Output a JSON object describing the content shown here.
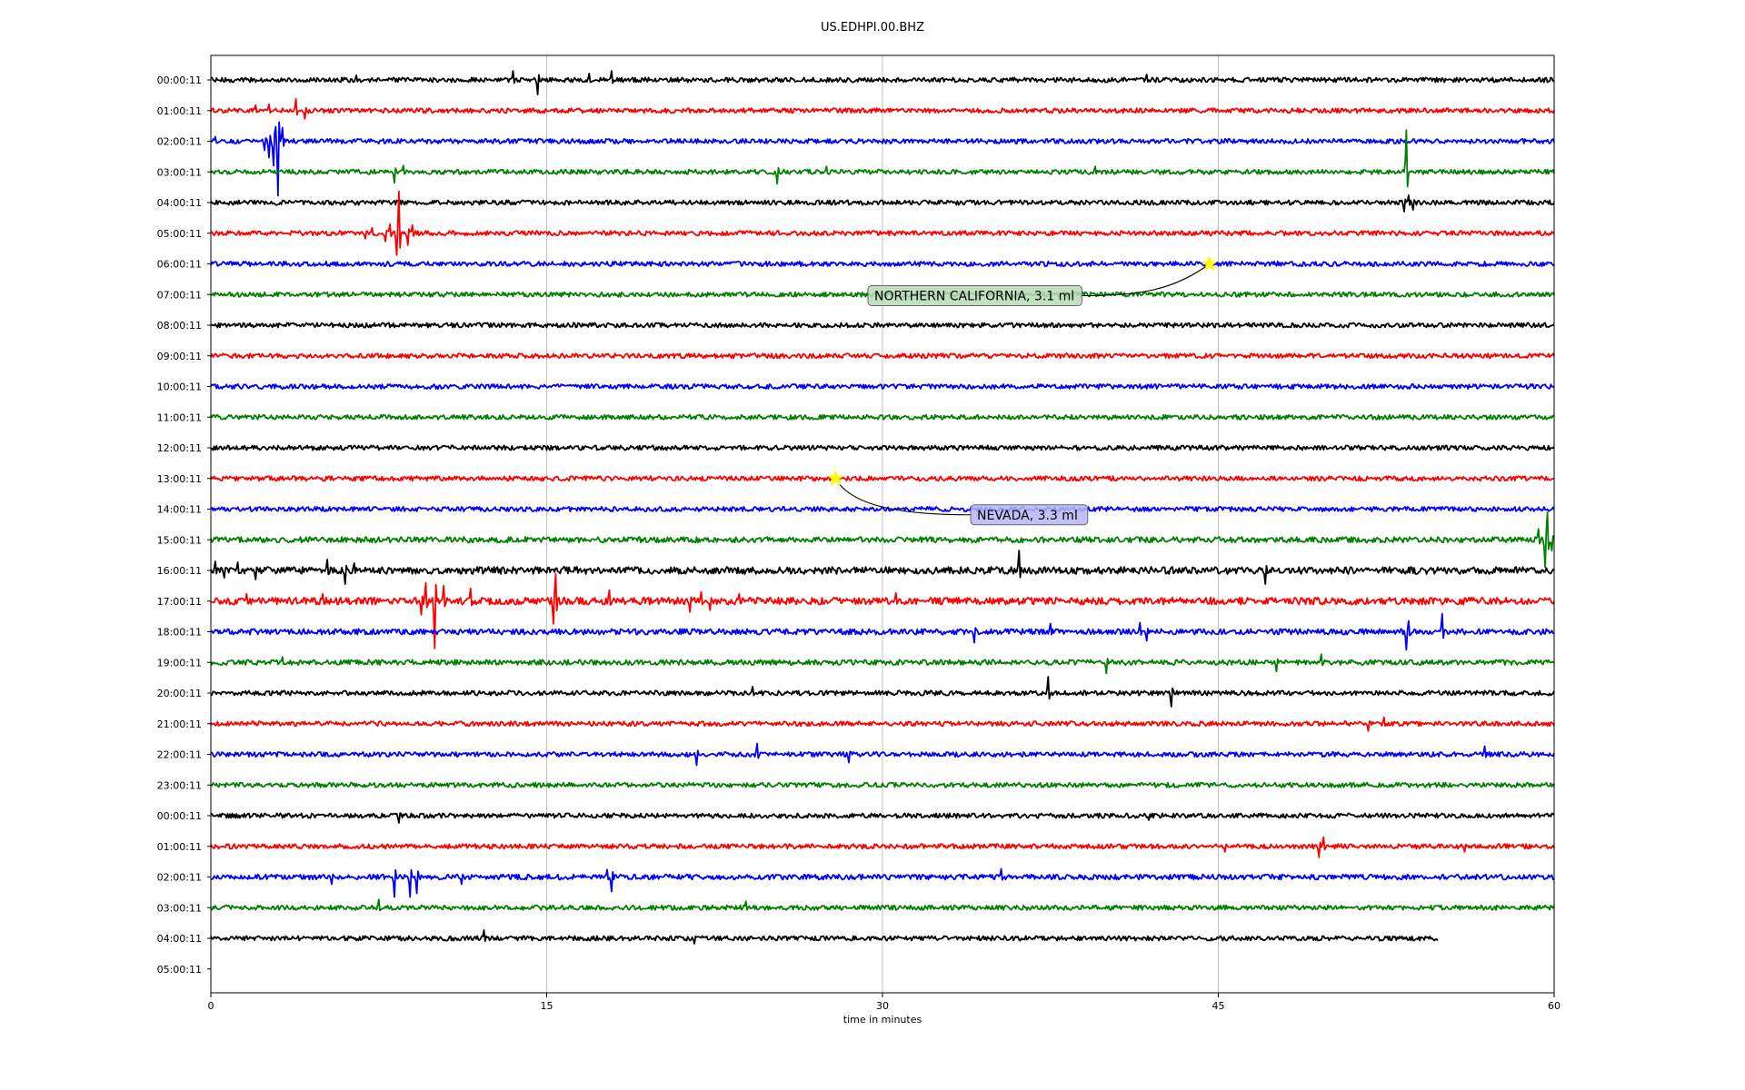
{
  "chart_data": {
    "type": "line",
    "title": "US.EDHPI.00.BHZ",
    "xlabel": "time in minutes",
    "ylabel": "",
    "xlim": [
      0,
      60
    ],
    "xticks": [
      "0",
      "15",
      "30",
      "45",
      "60"
    ],
    "xtick_values": [
      0,
      15,
      30,
      45,
      60
    ],
    "grid": "vertical lines at major x ticks",
    "colors": {
      "trace_cycle": [
        "#000000",
        "#ff0000",
        "#0000ff",
        "#008000"
      ],
      "event_star": "#ffff00"
    },
    "rows": [
      {
        "label": "00:00:11",
        "color": "#000000",
        "end_minute": 60,
        "noise": 1.0
      },
      {
        "label": "01:00:11",
        "color": "#ff0000",
        "end_minute": 60,
        "noise": 1.0
      },
      {
        "label": "02:00:11",
        "color": "#0000ff",
        "end_minute": 60,
        "noise": 1.0
      },
      {
        "label": "03:00:11",
        "color": "#008000",
        "end_minute": 60,
        "noise": 1.0
      },
      {
        "label": "04:00:11",
        "color": "#000000",
        "end_minute": 60,
        "noise": 1.0
      },
      {
        "label": "05:00:11",
        "color": "#ff0000",
        "end_minute": 60,
        "noise": 1.0
      },
      {
        "label": "06:00:11",
        "color": "#0000ff",
        "end_minute": 60,
        "noise": 1.0
      },
      {
        "label": "07:00:11",
        "color": "#008000",
        "end_minute": 60,
        "noise": 1.0
      },
      {
        "label": "08:00:11",
        "color": "#000000",
        "end_minute": 60,
        "noise": 1.0
      },
      {
        "label": "09:00:11",
        "color": "#ff0000",
        "end_minute": 60,
        "noise": 1.0
      },
      {
        "label": "10:00:11",
        "color": "#0000ff",
        "end_minute": 60,
        "noise": 1.0
      },
      {
        "label": "11:00:11",
        "color": "#008000",
        "end_minute": 60,
        "noise": 1.0
      },
      {
        "label": "12:00:11",
        "color": "#000000",
        "end_minute": 60,
        "noise": 1.0
      },
      {
        "label": "13:00:11",
        "color": "#ff0000",
        "end_minute": 60,
        "noise": 1.0
      },
      {
        "label": "14:00:11",
        "color": "#0000ff",
        "end_minute": 60,
        "noise": 1.0
      },
      {
        "label": "15:00:11",
        "color": "#008000",
        "end_minute": 60,
        "noise": 1.2
      },
      {
        "label": "16:00:11",
        "color": "#000000",
        "end_minute": 60,
        "noise": 1.5
      },
      {
        "label": "17:00:11",
        "color": "#ff0000",
        "end_minute": 60,
        "noise": 1.5
      },
      {
        "label": "18:00:11",
        "color": "#0000ff",
        "end_minute": 60,
        "noise": 1.2
      },
      {
        "label": "19:00:11",
        "color": "#008000",
        "end_minute": 60,
        "noise": 1.1
      },
      {
        "label": "20:00:11",
        "color": "#000000",
        "end_minute": 60,
        "noise": 1.0
      },
      {
        "label": "21:00:11",
        "color": "#ff0000",
        "end_minute": 60,
        "noise": 1.0
      },
      {
        "label": "22:00:11",
        "color": "#0000ff",
        "end_minute": 60,
        "noise": 1.0
      },
      {
        "label": "23:00:11",
        "color": "#008000",
        "end_minute": 60,
        "noise": 1.0
      },
      {
        "label": "00:00:11",
        "color": "#000000",
        "end_minute": 60,
        "noise": 1.0
      },
      {
        "label": "01:00:11",
        "color": "#ff0000",
        "end_minute": 60,
        "noise": 1.0
      },
      {
        "label": "02:00:11",
        "color": "#0000ff",
        "end_minute": 60,
        "noise": 1.1
      },
      {
        "label": "03:00:11",
        "color": "#008000",
        "end_minute": 60,
        "noise": 1.0
      },
      {
        "label": "04:00:11",
        "color": "#000000",
        "end_minute": 54.8,
        "noise": 1.0
      },
      {
        "label": "05:00:11",
        "color": "#ff0000",
        "end_minute": 0,
        "noise": 0
      }
    ],
    "spikes": [
      {
        "row": 0,
        "minute": 13.5,
        "amp": 10
      },
      {
        "row": 0,
        "minute": 14.6,
        "amp": -16
      },
      {
        "row": 0,
        "minute": 17.9,
        "amp": 10
      },
      {
        "row": 0,
        "minute": 16.9,
        "amp": 7
      },
      {
        "row": 0,
        "minute": 6.5,
        "amp": 5
      },
      {
        "row": 0,
        "minute": 41.8,
        "amp": 6
      },
      {
        "row": 1,
        "minute": 3.8,
        "amp": 13
      },
      {
        "row": 1,
        "minute": 2.0,
        "amp": 6
      },
      {
        "row": 1,
        "minute": 4.2,
        "amp": -9
      },
      {
        "row": 1,
        "minute": 2.6,
        "amp": 7
      },
      {
        "row": 2,
        "minute": 0.2,
        "amp": 5
      },
      {
        "row": 2,
        "minute": 2.6,
        "amp": -18
      },
      {
        "row": 2,
        "minute": 2.9,
        "amp": 16
      },
      {
        "row": 2,
        "minute": 3.2,
        "amp": 15
      },
      {
        "row": 2,
        "minute": 2.4,
        "amp": -10
      },
      {
        "row": 2,
        "minute": 2.8,
        "amp": -27
      },
      {
        "row": 2,
        "minute": 3.0,
        "amp": -60
      },
      {
        "row": 3,
        "minute": 8.2,
        "amp": -12
      },
      {
        "row": 3,
        "minute": 8.6,
        "amp": 7
      },
      {
        "row": 3,
        "minute": 25.3,
        "amp": -13
      },
      {
        "row": 3,
        "minute": 27.5,
        "amp": 6
      },
      {
        "row": 3,
        "minute": 39.5,
        "amp": 6
      },
      {
        "row": 3,
        "minute": 53.4,
        "amp": 46
      },
      {
        "row": 4,
        "minute": 53.3,
        "amp": -10
      },
      {
        "row": 4,
        "minute": 53.5,
        "amp": 8
      },
      {
        "row": 4,
        "minute": 53.7,
        "amp": -8
      },
      {
        "row": 5,
        "minute": 8.4,
        "amp": 46
      },
      {
        "row": 5,
        "minute": 8.3,
        "amp": -24
      },
      {
        "row": 5,
        "minute": 8.0,
        "amp": 10
      },
      {
        "row": 5,
        "minute": 8.8,
        "amp": -13
      },
      {
        "row": 5,
        "minute": 7.8,
        "amp": -9
      },
      {
        "row": 5,
        "minute": 9.0,
        "amp": 9
      },
      {
        "row": 5,
        "minute": 7.2,
        "amp": 6
      },
      {
        "row": 5,
        "minute": 6.9,
        "amp": -6
      },
      {
        "row": 15,
        "minute": 59.7,
        "amp": 30
      },
      {
        "row": 15,
        "minute": 59.6,
        "amp": -30
      },
      {
        "row": 15,
        "minute": 59.3,
        "amp": 12
      },
      {
        "row": 15,
        "minute": 59.9,
        "amp": -12
      },
      {
        "row": 16,
        "minute": 0.2,
        "amp": 10
      },
      {
        "row": 16,
        "minute": 0.6,
        "amp": -8
      },
      {
        "row": 16,
        "minute": 1.2,
        "amp": 9
      },
      {
        "row": 16,
        "minute": 2.0,
        "amp": -10
      },
      {
        "row": 16,
        "minute": 5.2,
        "amp": 12
      },
      {
        "row": 16,
        "minute": 6.0,
        "amp": -15
      },
      {
        "row": 16,
        "minute": 6.4,
        "amp": 8
      },
      {
        "row": 16,
        "minute": 36.1,
        "amp": 22
      },
      {
        "row": 16,
        "minute": 47.1,
        "amp": -15
      },
      {
        "row": 17,
        "minute": 10.0,
        "amp": 60
      },
      {
        "row": 17,
        "minute": 10.0,
        "amp": -52
      },
      {
        "row": 17,
        "minute": 9.6,
        "amp": 20
      },
      {
        "row": 17,
        "minute": 9.4,
        "amp": -15
      },
      {
        "row": 17,
        "minute": 10.4,
        "amp": 17
      },
      {
        "row": 17,
        "minute": 11.6,
        "amp": 14
      },
      {
        "row": 17,
        "minute": 15.4,
        "amp": 30
      },
      {
        "row": 17,
        "minute": 15.3,
        "amp": -25
      },
      {
        "row": 17,
        "minute": 17.8,
        "amp": 12
      },
      {
        "row": 17,
        "minute": 21.4,
        "amp": -12
      },
      {
        "row": 17,
        "minute": 21.9,
        "amp": 10
      },
      {
        "row": 17,
        "minute": 22.3,
        "amp": -10
      },
      {
        "row": 17,
        "minute": 30.6,
        "amp": 9
      },
      {
        "row": 17,
        "minute": 1.6,
        "amp": 8
      },
      {
        "row": 17,
        "minute": 5.0,
        "amp": 8
      },
      {
        "row": 17,
        "minute": 23.6,
        "amp": 8
      },
      {
        "row": 18,
        "minute": 34.1,
        "amp": -12
      },
      {
        "row": 18,
        "minute": 37.5,
        "amp": 9
      },
      {
        "row": 18,
        "minute": 41.5,
        "amp": 10
      },
      {
        "row": 18,
        "minute": 41.8,
        "amp": -10
      },
      {
        "row": 18,
        "minute": 53.4,
        "amp": -20
      },
      {
        "row": 18,
        "minute": 53.5,
        "amp": 12
      },
      {
        "row": 18,
        "minute": 55.0,
        "amp": 20
      },
      {
        "row": 19,
        "minute": 40.0,
        "amp": -12
      },
      {
        "row": 19,
        "minute": 47.6,
        "amp": -10
      },
      {
        "row": 19,
        "minute": 49.6,
        "amp": 9
      },
      {
        "row": 19,
        "minute": 3.2,
        "amp": 6
      },
      {
        "row": 20,
        "minute": 37.4,
        "amp": 18
      },
      {
        "row": 20,
        "minute": 42.9,
        "amp": -15
      },
      {
        "row": 20,
        "minute": 24.2,
        "amp": 7
      },
      {
        "row": 21,
        "minute": 51.7,
        "amp": -8
      },
      {
        "row": 21,
        "minute": 52.4,
        "amp": 7
      },
      {
        "row": 22,
        "minute": 24.4,
        "amp": 12
      },
      {
        "row": 22,
        "minute": 21.7,
        "amp": -12
      },
      {
        "row": 22,
        "minute": 28.5,
        "amp": -9
      },
      {
        "row": 22,
        "minute": 56.9,
        "amp": 9
      },
      {
        "row": 24,
        "minute": 8.4,
        "amp": -8
      },
      {
        "row": 24,
        "minute": 41.9,
        "amp": -5
      },
      {
        "row": 25,
        "minute": 49.7,
        "amp": 10
      },
      {
        "row": 25,
        "minute": 49.5,
        "amp": -12
      },
      {
        "row": 25,
        "minute": 45.3,
        "amp": -6
      },
      {
        "row": 25,
        "minute": 56.0,
        "amp": -6
      },
      {
        "row": 26,
        "minute": 8.2,
        "amp": 10
      },
      {
        "row": 26,
        "minute": 8.2,
        "amp": -22
      },
      {
        "row": 26,
        "minute": 8.9,
        "amp": -22
      },
      {
        "row": 26,
        "minute": 9.2,
        "amp": -18
      },
      {
        "row": 26,
        "minute": 17.9,
        "amp": -16
      },
      {
        "row": 26,
        "minute": 17.7,
        "amp": 8
      },
      {
        "row": 26,
        "minute": 35.3,
        "amp": 9
      },
      {
        "row": 26,
        "minute": 5.4,
        "amp": -8
      },
      {
        "row": 26,
        "minute": 11.2,
        "amp": -8
      },
      {
        "row": 27,
        "minute": 7.5,
        "amp": 9
      },
      {
        "row": 27,
        "minute": 23.9,
        "amp": 7
      },
      {
        "row": 28,
        "minute": 12.2,
        "amp": 9
      },
      {
        "row": 28,
        "minute": 21.6,
        "amp": -6
      }
    ],
    "events": [
      {
        "label": "NORTHERN CALIFORNIA, 3.1 ml",
        "row": 6,
        "minute": 44.6,
        "box_color": "#b6dcb6"
      },
      {
        "label": "NEVADA, 3.3 ml",
        "row": 13,
        "minute": 27.9,
        "box_color": "#b6b6f5"
      }
    ]
  }
}
